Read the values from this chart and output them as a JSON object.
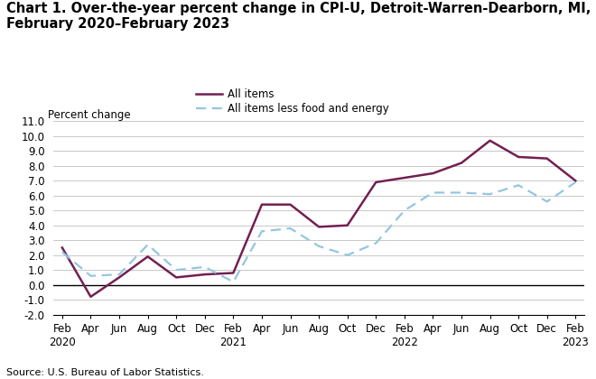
{
  "title_line1": "Chart 1. Over-the-year percent change in CPI-U, Detroit-Warren-Dearborn, MI,",
  "title_line2": "February 2020–February 2023",
  "ylabel": "Percent change",
  "source": "Source: U.S. Bureau of Labor Statistics.",
  "legend_labels": [
    "All items",
    "All items less food and energy"
  ],
  "all_items": [
    2.5,
    -0.8,
    0.5,
    1.9,
    0.5,
    0.7,
    0.8,
    5.4,
    5.4,
    3.9,
    4.0,
    6.9,
    7.2,
    7.5,
    8.2,
    9.7,
    8.6,
    8.5,
    7.0
  ],
  "core": [
    2.2,
    0.6,
    0.7,
    2.7,
    1.0,
    1.2,
    0.2,
    3.6,
    3.8,
    2.6,
    2.0,
    2.8,
    5.0,
    6.2,
    6.2,
    6.1,
    6.7,
    5.6,
    6.9
  ],
  "all_items_color": "#722052",
  "core_color": "#93c6e0",
  "ylim": [
    -2.0,
    11.0
  ],
  "yticks": [
    -2.0,
    -1.0,
    0.0,
    1.0,
    2.0,
    3.0,
    4.0,
    5.0,
    6.0,
    7.0,
    8.0,
    9.0,
    10.0,
    11.0
  ],
  "background_color": "#ffffff",
  "grid_color": "#c8c8c8",
  "title_fontsize": 10.5,
  "axis_label_fontsize": 8.5,
  "tick_fontsize": 8.5,
  "legend_fontsize": 8.5,
  "source_fontsize": 8
}
